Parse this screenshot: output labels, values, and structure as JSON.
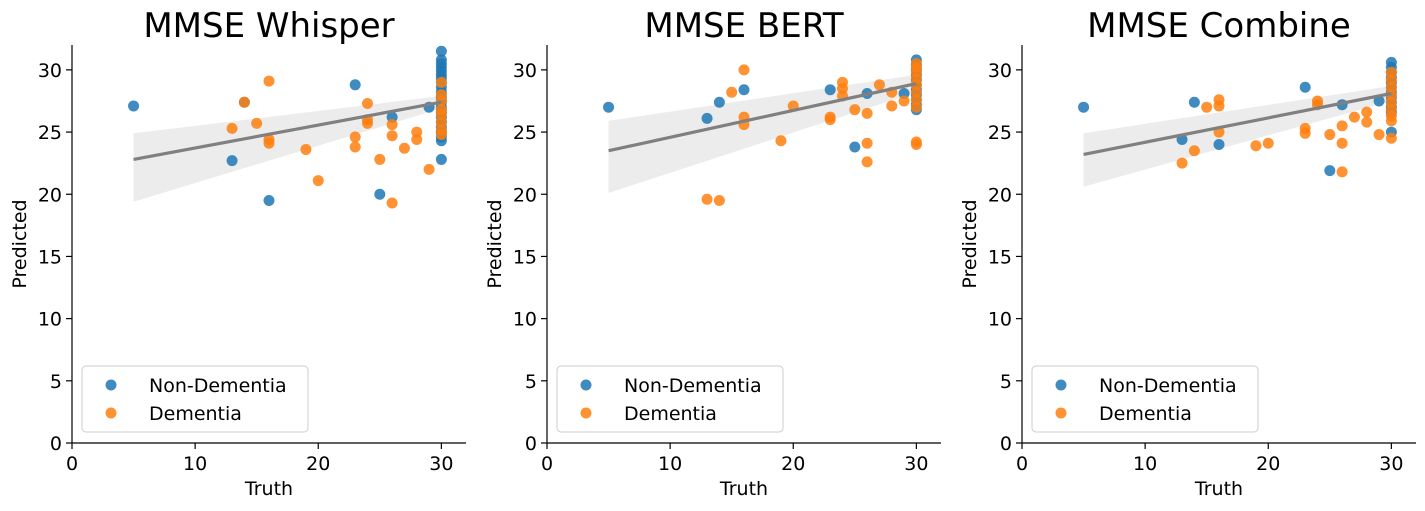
{
  "chart_data": [
    {
      "type": "scatter",
      "title": "MMSE Whisper",
      "xlabel": "Truth",
      "ylabel": "Predicted",
      "xlim": [
        0,
        32
      ],
      "ylim": [
        0,
        32
      ],
      "xticks": [
        0,
        10,
        20,
        30
      ],
      "yticks": [
        0,
        5,
        10,
        15,
        20,
        25,
        30
      ],
      "legend_placement": "lower-left",
      "regression": {
        "x_range": [
          5,
          30
        ],
        "y_start": 22.8,
        "y_end": 27.4,
        "ci_lower": [
          19.4,
          26.9
        ],
        "ci_upper": [
          24.9,
          27.9
        ],
        "color": "#808080"
      },
      "series": [
        {
          "name": "Non-Dementia",
          "color": "#1f77b4",
          "points": [
            [
              5,
              27.1
            ],
            [
              13,
              22.7
            ],
            [
              14,
              27.4
            ],
            [
              16,
              19.5
            ],
            [
              23,
              28.8
            ],
            [
              25,
              20
            ],
            [
              26,
              26.2
            ],
            [
              29,
              27
            ],
            [
              30,
              31.5
            ],
            [
              30,
              30.8
            ],
            [
              30,
              30.5
            ],
            [
              30,
              30.2
            ],
            [
              30,
              29.9
            ],
            [
              30,
              29.6
            ],
            [
              30,
              29.3
            ],
            [
              30,
              29
            ],
            [
              30,
              28.6
            ],
            [
              30,
              28.2
            ],
            [
              30,
              27.8
            ],
            [
              30,
              27.4
            ],
            [
              30,
              27
            ],
            [
              30,
              26.6
            ],
            [
              30,
              26.2
            ],
            [
              30,
              25.8
            ],
            [
              30,
              25.4
            ],
            [
              30,
              25
            ],
            [
              30,
              24.6
            ],
            [
              30,
              24.3
            ],
            [
              30,
              22.8
            ]
          ]
        },
        {
          "name": "Dementia",
          "color": "#ff7f0e",
          "points": [
            [
              13,
              25.3
            ],
            [
              14,
              27.4
            ],
            [
              15,
              25.7
            ],
            [
              16,
              29.1
            ],
            [
              16,
              24.4
            ],
            [
              16,
              24.1
            ],
            [
              19,
              23.6
            ],
            [
              20,
              21.1
            ],
            [
              23,
              24.6
            ],
            [
              23,
              23.8
            ],
            [
              24,
              27.3
            ],
            [
              24,
              26
            ],
            [
              24,
              25.7
            ],
            [
              25,
              22.8
            ],
            [
              26,
              25.6
            ],
            [
              26,
              24.7
            ],
            [
              26,
              19.3
            ],
            [
              27,
              23.7
            ],
            [
              28,
              25
            ],
            [
              28,
              24.4
            ],
            [
              29,
              22
            ],
            [
              30,
              29
            ],
            [
              30,
              28
            ],
            [
              30,
              27.5
            ],
            [
              30,
              26.8
            ],
            [
              30,
              26.4
            ],
            [
              30,
              25.8
            ],
            [
              30,
              25.2
            ],
            [
              30,
              24.8
            ]
          ]
        }
      ]
    },
    {
      "type": "scatter",
      "title": "MMSE BERT",
      "xlabel": "Truth",
      "ylabel": "Predicted",
      "xlim": [
        0,
        32
      ],
      "ylim": [
        0,
        32
      ],
      "xticks": [
        0,
        10,
        20,
        30
      ],
      "yticks": [
        0,
        5,
        10,
        15,
        20,
        25,
        30
      ],
      "legend_placement": "lower-left",
      "regression": {
        "x_range": [
          5,
          30
        ],
        "y_start": 23.5,
        "y_end": 28.9,
        "ci_lower": [
          20.1,
          28.2
        ],
        "ci_upper": [
          25.9,
          29.6
        ],
        "color": "#808080"
      },
      "series": [
        {
          "name": "Non-Dementia",
          "color": "#1f77b4",
          "points": [
            [
              5,
              27
            ],
            [
              13,
              26.1
            ],
            [
              14,
              27.4
            ],
            [
              16,
              28.4
            ],
            [
              23,
              28.4
            ],
            [
              25,
              23.8
            ],
            [
              26,
              28.1
            ],
            [
              29,
              28.1
            ],
            [
              30,
              30.8
            ],
            [
              30,
              30.4
            ],
            [
              30,
              30
            ],
            [
              30,
              29.6
            ],
            [
              30,
              29.2
            ],
            [
              30,
              28.8
            ],
            [
              30,
              28.4
            ],
            [
              30,
              28
            ],
            [
              30,
              27.6
            ],
            [
              30,
              27.2
            ],
            [
              30,
              26.8
            ]
          ]
        },
        {
          "name": "Dementia",
          "color": "#ff7f0e",
          "points": [
            [
              13,
              19.6
            ],
            [
              14,
              19.5
            ],
            [
              15,
              28.2
            ],
            [
              16,
              30
            ],
            [
              16,
              26.2
            ],
            [
              16,
              25.6
            ],
            [
              19,
              24.3
            ],
            [
              20,
              27.1
            ],
            [
              23,
              26.2
            ],
            [
              23,
              26
            ],
            [
              24,
              29
            ],
            [
              24,
              28.5
            ],
            [
              24,
              27.9
            ],
            [
              25,
              26.8
            ],
            [
              26,
              26.5
            ],
            [
              26,
              24.1
            ],
            [
              26,
              22.6
            ],
            [
              27,
              28.8
            ],
            [
              28,
              28.2
            ],
            [
              28,
              27.1
            ],
            [
              29,
              27.5
            ],
            [
              30,
              30.5
            ],
            [
              30,
              30.2
            ],
            [
              30,
              29.8
            ],
            [
              30,
              29.3
            ],
            [
              30,
              28.8
            ],
            [
              30,
              28.2
            ],
            [
              30,
              27.6
            ],
            [
              30,
              27
            ],
            [
              30,
              24.2
            ],
            [
              30,
              24
            ]
          ]
        }
      ]
    },
    {
      "type": "scatter",
      "title": "MMSE Combine",
      "xlabel": "Truth",
      "ylabel": "Predicted",
      "xlim": [
        0,
        32
      ],
      "ylim": [
        0,
        32
      ],
      "xticks": [
        0,
        10,
        20,
        30
      ],
      "yticks": [
        0,
        5,
        10,
        15,
        20,
        25,
        30
      ],
      "legend_placement": "lower-left",
      "regression": {
        "x_range": [
          5,
          30
        ],
        "y_start": 23.2,
        "y_end": 28.1,
        "ci_lower": [
          20.6,
          27.5
        ],
        "ci_upper": [
          24.9,
          28.7
        ],
        "color": "#808080"
      },
      "series": [
        {
          "name": "Non-Dementia",
          "color": "#1f77b4",
          "points": [
            [
              5,
              27
            ],
            [
              13,
              24.4
            ],
            [
              14,
              27.4
            ],
            [
              16,
              24
            ],
            [
              23,
              28.6
            ],
            [
              25,
              21.9
            ],
            [
              26,
              27.2
            ],
            [
              29,
              27.5
            ],
            [
              30,
              30.6
            ],
            [
              30,
              30.2
            ],
            [
              30,
              29.8
            ],
            [
              30,
              29.4
            ],
            [
              30,
              29
            ],
            [
              30,
              28.6
            ],
            [
              30,
              28.2
            ],
            [
              30,
              27.8
            ],
            [
              30,
              27.4
            ],
            [
              30,
              27
            ],
            [
              30,
              26.6
            ],
            [
              30,
              25
            ]
          ]
        },
        {
          "name": "Dementia",
          "color": "#ff7f0e",
          "points": [
            [
              13,
              22.5
            ],
            [
              14,
              23.5
            ],
            [
              15,
              27
            ],
            [
              16,
              27.6
            ],
            [
              16,
              27.1
            ],
            [
              16,
              25
            ],
            [
              19,
              23.9
            ],
            [
              20,
              24.1
            ],
            [
              23,
              25.3
            ],
            [
              23,
              24.9
            ],
            [
              24,
              27.5
            ],
            [
              24,
              27.2
            ],
            [
              25,
              24.8
            ],
            [
              26,
              25.5
            ],
            [
              26,
              24.1
            ],
            [
              26,
              21.8
            ],
            [
              27,
              26.2
            ],
            [
              28,
              26.6
            ],
            [
              28,
              25.8
            ],
            [
              29,
              24.8
            ],
            [
              30,
              29.8
            ],
            [
              30,
              29.2
            ],
            [
              30,
              28.6
            ],
            [
              30,
              28
            ],
            [
              30,
              27.4
            ],
            [
              30,
              26.8
            ],
            [
              30,
              26.3
            ],
            [
              30,
              25.9
            ],
            [
              30,
              24.5
            ]
          ]
        }
      ]
    }
  ]
}
